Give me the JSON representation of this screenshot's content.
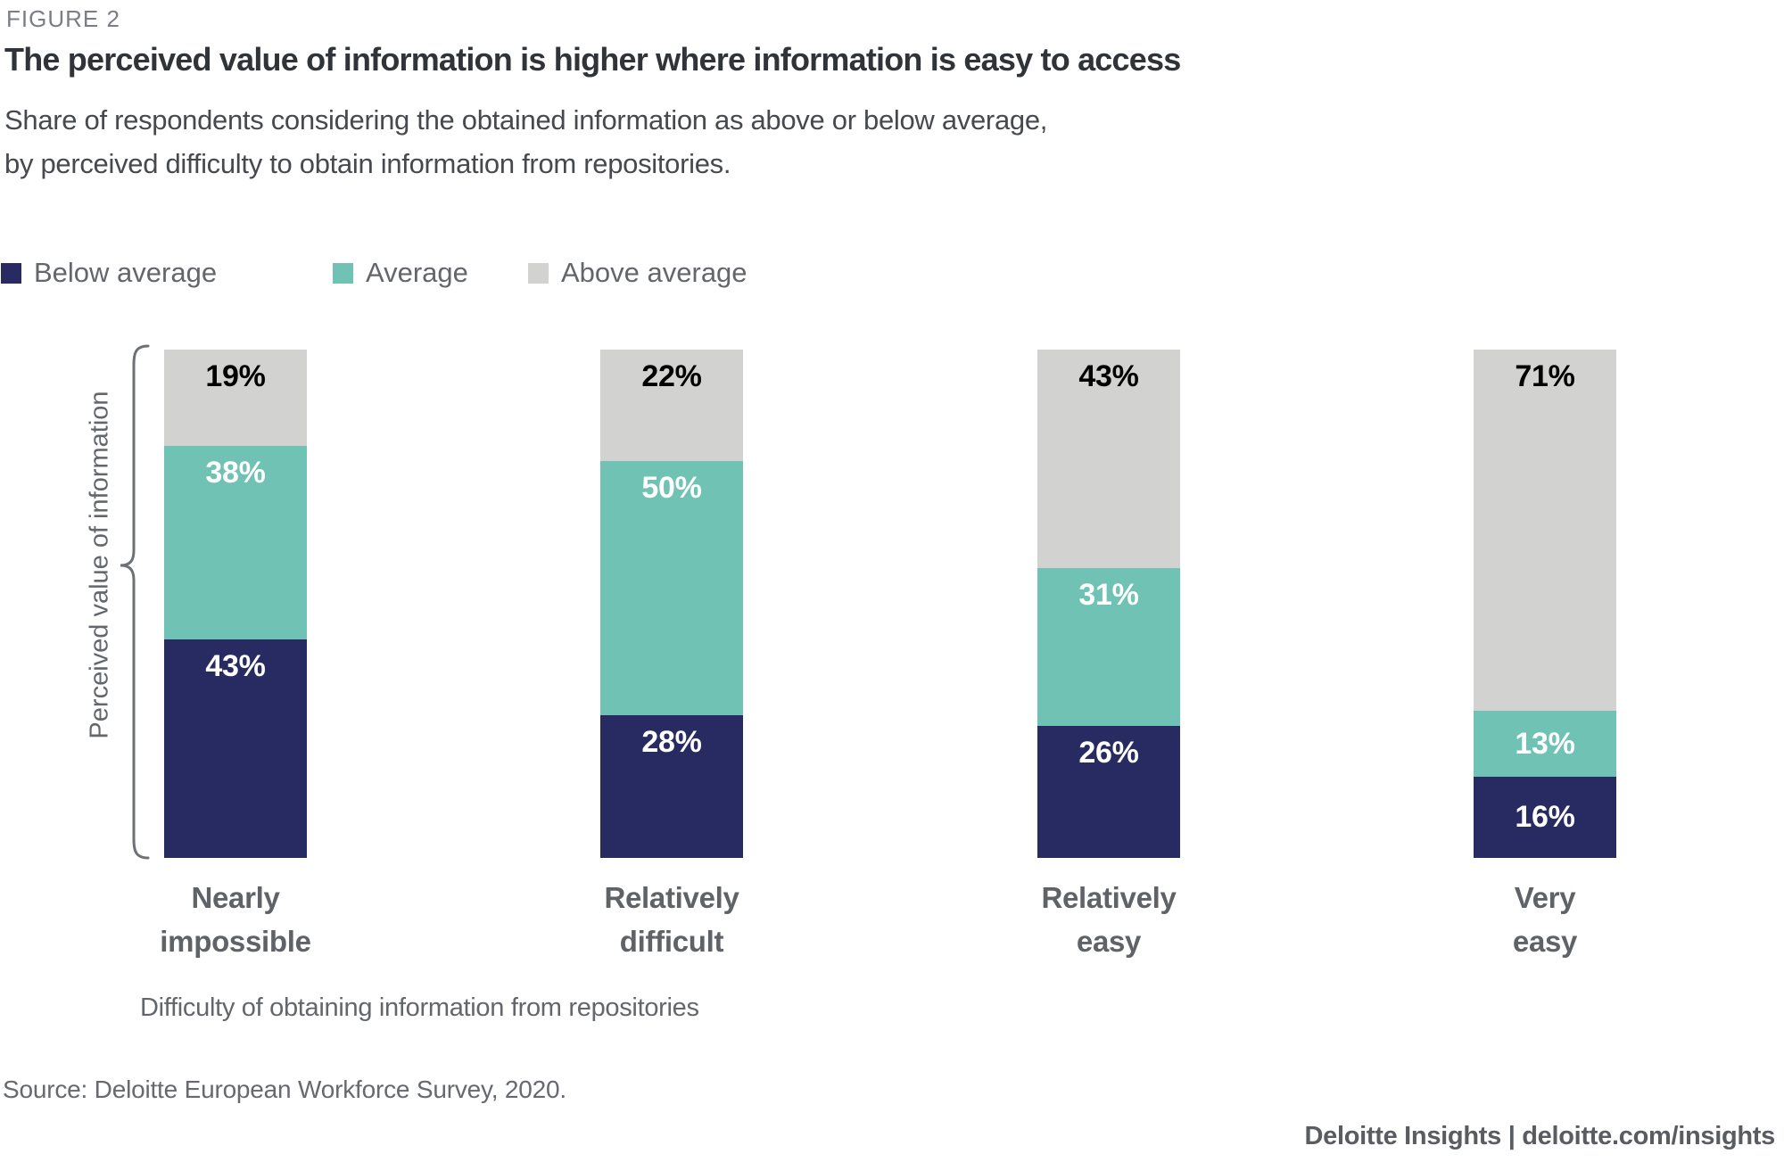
{
  "figure_label": "FIGURE 2",
  "title": "The perceived value of information is higher where information is easy to access",
  "subtitle_line1": "Share of respondents considering the obtained information as above or below average,",
  "subtitle_line2": "by perceived difficulty to obtain information from repositories.",
  "legend": {
    "items": [
      {
        "label": "Below average",
        "color": "#282b61"
      },
      {
        "label": "Average",
        "color": "#6fc2b4"
      },
      {
        "label": "Above average",
        "color": "#d2d2d0"
      }
    ]
  },
  "y_axis_label": "Perceived value of information",
  "x_axis_title": "Difficulty of obtaining information from repositories",
  "source": "Source: Deloitte European Workforce Survey, 2020.",
  "footer": "Deloitte Insights | deloitte.com/insights",
  "chart_data": {
    "type": "bar",
    "stacked": true,
    "unit": "%",
    "title": "The perceived value of information is higher where information is easy to access",
    "categories": [
      "Nearly impossible",
      "Relatively difficult",
      "Relatively easy",
      "Very easy"
    ],
    "category_lines": [
      [
        "Nearly",
        "impossible"
      ],
      [
        "Relatively",
        "difficult"
      ],
      [
        "Relatively",
        "easy"
      ],
      [
        "Very",
        "easy"
      ]
    ],
    "series": [
      {
        "name": "Below average",
        "color": "#282b61",
        "label_color": "#ffffff",
        "values": [
          43,
          28,
          26,
          16
        ]
      },
      {
        "name": "Average",
        "color": "#6fc2b4",
        "label_color": "#ffffff",
        "values": [
          38,
          50,
          31,
          13
        ]
      },
      {
        "name": "Above average",
        "color": "#d2d2d0",
        "label_color": "#000000",
        "values": [
          19,
          22,
          43,
          71
        ]
      }
    ],
    "stack_order_top_to_bottom": [
      "Above average",
      "Average",
      "Below average"
    ],
    "xlabel": "Difficulty of obtaining information from repositories",
    "ylabel": "Perceived value of information",
    "ylim": [
      0,
      100
    ],
    "grid": false,
    "legend_position": "top"
  }
}
